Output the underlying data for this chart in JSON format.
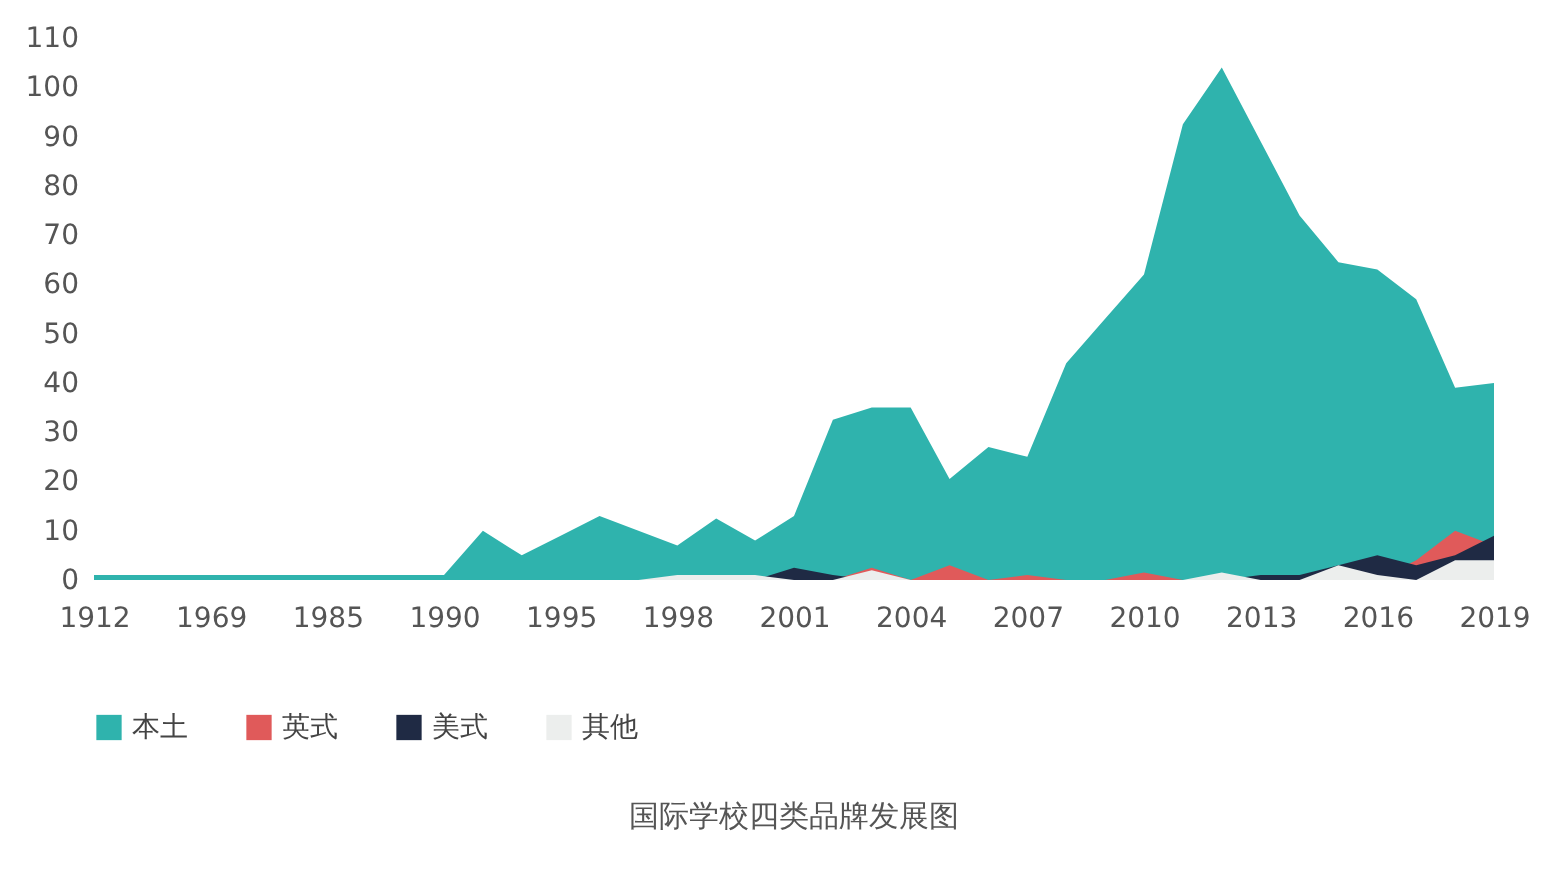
{
  "chart_data": {
    "type": "area",
    "title": "国际学校四类品牌发展图",
    "categories": [
      "1912",
      null,
      null,
      "1969",
      null,
      null,
      "1985",
      null,
      null,
      "1990",
      null,
      null,
      "1995",
      null,
      null,
      "1998",
      null,
      null,
      "2001",
      null,
      null,
      "2004",
      null,
      null,
      "2007",
      null,
      null,
      "2010",
      null,
      null,
      "2013",
      null,
      null,
      "2016",
      null,
      null,
      "2019"
    ],
    "series": [
      {
        "name": "本土",
        "color": "#2fb3ad",
        "values": [
          1,
          1,
          1,
          1,
          1,
          1,
          1,
          1,
          1,
          1,
          10,
          5,
          9,
          13,
          10,
          7,
          12.5,
          8,
          13,
          32.5,
          35,
          35,
          20.5,
          27,
          25,
          44,
          53,
          62,
          92.5,
          104,
          89,
          74,
          64.5,
          63,
          57,
          39,
          40
        ]
      },
      {
        "name": "英式",
        "color": "#e05a5a",
        "values": [
          0,
          0,
          0,
          0,
          0,
          0,
          0,
          0,
          0,
          0,
          0,
          0,
          0,
          0,
          0,
          0,
          0,
          0,
          0,
          0,
          2.5,
          0,
          3,
          0,
          1,
          0,
          0,
          1.5,
          0,
          0,
          0,
          0,
          0,
          0,
          4,
          10,
          7
        ]
      },
      {
        "name": "美式",
        "color": "#1f2a44",
        "values": [
          0,
          0,
          0,
          0,
          0,
          0,
          0,
          0,
          0,
          0,
          0,
          0,
          0,
          0,
          0,
          0,
          0,
          0,
          2.5,
          1,
          0,
          0,
          0,
          0,
          0,
          0,
          0,
          0,
          0,
          0,
          1,
          1,
          3,
          5,
          3,
          5,
          9
        ]
      },
      {
        "name": "其他",
        "color": "#eceeed",
        "values": [
          0,
          0,
          0,
          0,
          0,
          0,
          0,
          0,
          0,
          0,
          0,
          0,
          0,
          0,
          0,
          1,
          1,
          1,
          0,
          0,
          2,
          0,
          0,
          0,
          0,
          0,
          0,
          0,
          0,
          1.5,
          0,
          0,
          3,
          1,
          0,
          4,
          4
        ]
      }
    ],
    "ylim": [
      0,
      110
    ],
    "yticks": [
      0,
      10,
      20,
      30,
      40,
      50,
      60,
      70,
      80,
      90,
      100,
      110
    ],
    "grid": false,
    "legend": "bottom"
  }
}
